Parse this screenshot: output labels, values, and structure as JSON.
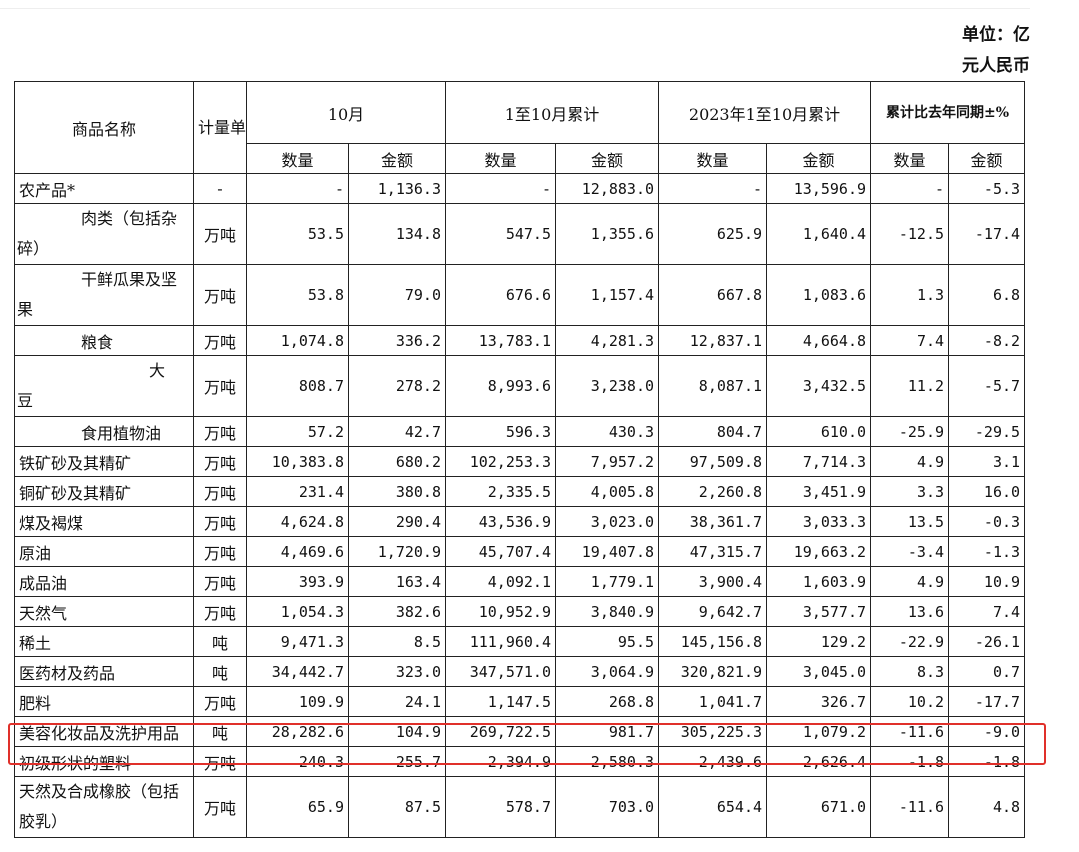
{
  "unit_note_line1": "单位：亿",
  "unit_note_line2": "元人民币",
  "headers": {
    "name": "商品名称",
    "unit": "计量单位",
    "oct": "10月",
    "jan_oct": "1至10月累计",
    "prev_jan_oct": "2023年1至10月累计",
    "yoy": "累计比去年同期±%",
    "qty": "数量",
    "amt": "金额"
  },
  "rows": [
    {
      "name": "农产品*",
      "unit": "-",
      "c1": "-",
      "c2": "1,136.3",
      "c3": "-",
      "c4": "12,883.0",
      "c5": "-",
      "c6": "13,596.9",
      "c7": "-",
      "c8": "-5.3"
    },
    {
      "name": "肉类（包括杂碎）",
      "name_a": "肉类（包括杂",
      "name_b": "碎）",
      "unit": "万吨",
      "c1": "53.5",
      "c2": "134.8",
      "c3": "547.5",
      "c4": "1,355.6",
      "c5": "625.9",
      "c6": "1,640.4",
      "c7": "-12.5",
      "c8": "-17.4"
    },
    {
      "name": "干鲜瓜果及坚果",
      "name_a": "干鲜瓜果及坚",
      "name_b": "果",
      "unit": "万吨",
      "c1": "53.8",
      "c2": "79.0",
      "c3": "676.6",
      "c4": "1,157.4",
      "c5": "667.8",
      "c6": "1,083.6",
      "c7": "1.3",
      "c8": "6.8"
    },
    {
      "name": "粮食",
      "unit": "万吨",
      "c1": "1,074.8",
      "c2": "336.2",
      "c3": "13,783.1",
      "c4": "4,281.3",
      "c5": "12,837.1",
      "c6": "4,664.8",
      "c7": "7.4",
      "c8": "-8.2"
    },
    {
      "name": "大豆",
      "name_a": "大",
      "name_b": "豆",
      "unit": "万吨",
      "c1": "808.7",
      "c2": "278.2",
      "c3": "8,993.6",
      "c4": "3,238.0",
      "c5": "8,087.1",
      "c6": "3,432.5",
      "c7": "11.2",
      "c8": "-5.7"
    },
    {
      "name": "食用植物油",
      "unit": "万吨",
      "c1": "57.2",
      "c2": "42.7",
      "c3": "596.3",
      "c4": "430.3",
      "c5": "804.7",
      "c6": "610.0",
      "c7": "-25.9",
      "c8": "-29.5"
    },
    {
      "name": "铁矿砂及其精矿",
      "unit": "万吨",
      "c1": "10,383.8",
      "c2": "680.2",
      "c3": "102,253.3",
      "c4": "7,957.2",
      "c5": "97,509.8",
      "c6": "7,714.3",
      "c7": "4.9",
      "c8": "3.1"
    },
    {
      "name": "铜矿砂及其精矿",
      "unit": "万吨",
      "c1": "231.4",
      "c2": "380.8",
      "c3": "2,335.5",
      "c4": "4,005.8",
      "c5": "2,260.8",
      "c6": "3,451.9",
      "c7": "3.3",
      "c8": "16.0"
    },
    {
      "name": "煤及褐煤",
      "unit": "万吨",
      "c1": "4,624.8",
      "c2": "290.4",
      "c3": "43,536.9",
      "c4": "3,023.0",
      "c5": "38,361.7",
      "c6": "3,033.3",
      "c7": "13.5",
      "c8": "-0.3"
    },
    {
      "name": "原油",
      "unit": "万吨",
      "c1": "4,469.6",
      "c2": "1,720.9",
      "c3": "45,707.4",
      "c4": "19,407.8",
      "c5": "47,315.7",
      "c6": "19,663.2",
      "c7": "-3.4",
      "c8": "-1.3"
    },
    {
      "name": "成品油",
      "unit": "万吨",
      "c1": "393.9",
      "c2": "163.4",
      "c3": "4,092.1",
      "c4": "1,779.1",
      "c5": "3,900.4",
      "c6": "1,603.9",
      "c7": "4.9",
      "c8": "10.9"
    },
    {
      "name": "天然气",
      "unit": "万吨",
      "c1": "1,054.3",
      "c2": "382.6",
      "c3": "10,952.9",
      "c4": "3,840.9",
      "c5": "9,642.7",
      "c6": "3,577.7",
      "c7": "13.6",
      "c8": "7.4"
    },
    {
      "name": "稀土",
      "unit": "吨",
      "c1": "9,471.3",
      "c2": "8.5",
      "c3": "111,960.4",
      "c4": "95.5",
      "c5": "145,156.8",
      "c6": "129.2",
      "c7": "-22.9",
      "c8": "-26.1"
    },
    {
      "name": "医药材及药品",
      "unit": "吨",
      "c1": "34,442.7",
      "c2": "323.0",
      "c3": "347,571.0",
      "c4": "3,064.9",
      "c5": "320,821.9",
      "c6": "3,045.0",
      "c7": "8.3",
      "c8": "0.7"
    },
    {
      "name": "肥料",
      "unit": "万吨",
      "c1": "109.9",
      "c2": "24.1",
      "c3": "1,147.5",
      "c4": "268.8",
      "c5": "1,041.7",
      "c6": "326.7",
      "c7": "10.2",
      "c8": "-17.7"
    },
    {
      "name": "美容化妆品及洗护用品",
      "unit": "吨",
      "c1": "28,282.6",
      "c2": "104.9",
      "c3": "269,722.5",
      "c4": "981.7",
      "c5": "305,225.3",
      "c6": "1,079.2",
      "c7": "-11.6",
      "c8": "-9.0"
    },
    {
      "name": "初级形状的塑料",
      "unit": "万吨",
      "c1": "240.3",
      "c2": "255.7",
      "c3": "2,394.9",
      "c4": "2,580.3",
      "c5": "2,439.6",
      "c6": "2,626.4",
      "c7": "-1.8",
      "c8": "-1.8"
    },
    {
      "name": "天然及合成橡胶（包括胶乳）",
      "name_a": "天然及合成橡胶（包括",
      "name_b": "胶乳）",
      "unit": "万吨",
      "c1": "65.9",
      "c2": "87.5",
      "c3": "578.7",
      "c4": "703.0",
      "c5": "654.4",
      "c6": "671.0",
      "c7": "-11.6",
      "c8": "4.8"
    }
  ]
}
